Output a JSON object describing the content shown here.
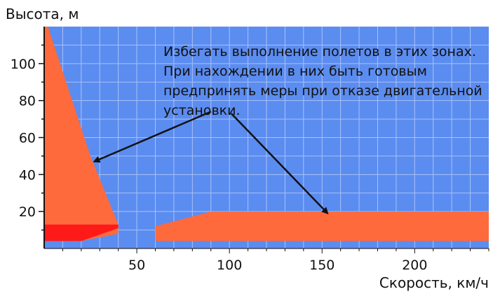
{
  "chart_data": {
    "type": "area",
    "title": "",
    "xlabel": "Скорость, км/ч",
    "ylabel": "Высота, м",
    "xlim": [
      0,
      240
    ],
    "ylim": [
      0,
      120
    ],
    "xticks": [
      50,
      100,
      150,
      200
    ],
    "yticks": [
      20,
      40,
      60,
      80,
      100
    ],
    "grid": true,
    "colors": {
      "background": "#5b8cf0",
      "grid": "#a9c2f6",
      "avoid_zone": "#ff6a3d",
      "critical_zone": "#ff1a1a",
      "arrow": "#111111"
    },
    "zones": [
      {
        "kind": "avoid",
        "points": [
          [
            0,
            120
          ],
          [
            2,
            120
          ],
          [
            25,
            50
          ],
          [
            40,
            13
          ],
          [
            40,
            8
          ],
          [
            20,
            4
          ],
          [
            0,
            4
          ]
        ]
      },
      {
        "kind": "avoid",
        "points": [
          [
            60,
            4
          ],
          [
            240,
            4
          ],
          [
            240,
            20
          ],
          [
            90,
            20
          ],
          [
            60,
            12
          ]
        ]
      },
      {
        "kind": "critical",
        "points": [
          [
            0,
            4
          ],
          [
            20,
            4
          ],
          [
            40,
            11
          ],
          [
            40,
            13
          ],
          [
            0,
            13
          ]
        ]
      }
    ],
    "annotation": {
      "lines": [
        "Избегать выполнение полетов в этих зонах.",
        "При нахождении в них быть готовым",
        "предпринять меры при отказе двигательной",
        "установки."
      ],
      "arrows": [
        {
          "from": [
            90,
            74
          ],
          "to": [
            27,
            47
          ]
        },
        {
          "from": [
            101,
            73
          ],
          "to": [
            153,
            19
          ]
        }
      ]
    }
  }
}
